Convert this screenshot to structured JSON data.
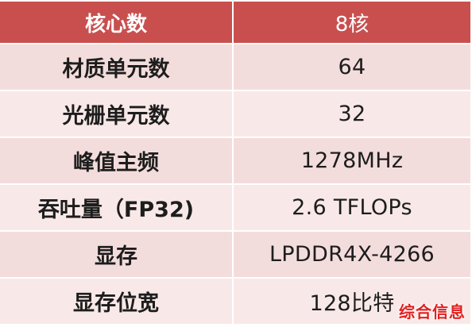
{
  "table": {
    "header": {
      "label": "核心数",
      "value": "8核"
    },
    "rows": [
      {
        "label": "材质单元数",
        "value": "64"
      },
      {
        "label": "光栅单元数",
        "value": "32"
      },
      {
        "label": "峰值主频",
        "value": "1278MHz"
      },
      {
        "label": "吞吐量（FP32)",
        "value": "2.6 TFLOPs"
      },
      {
        "label": "显存",
        "value": "LPDDR4X-4266"
      },
      {
        "label": "显存位宽",
        "value": "128比特"
      }
    ]
  },
  "watermark": "综合信息",
  "colors": {
    "header_background": "#c94f4f",
    "row_background": "#f3dddc",
    "watermark": "#e02020"
  }
}
